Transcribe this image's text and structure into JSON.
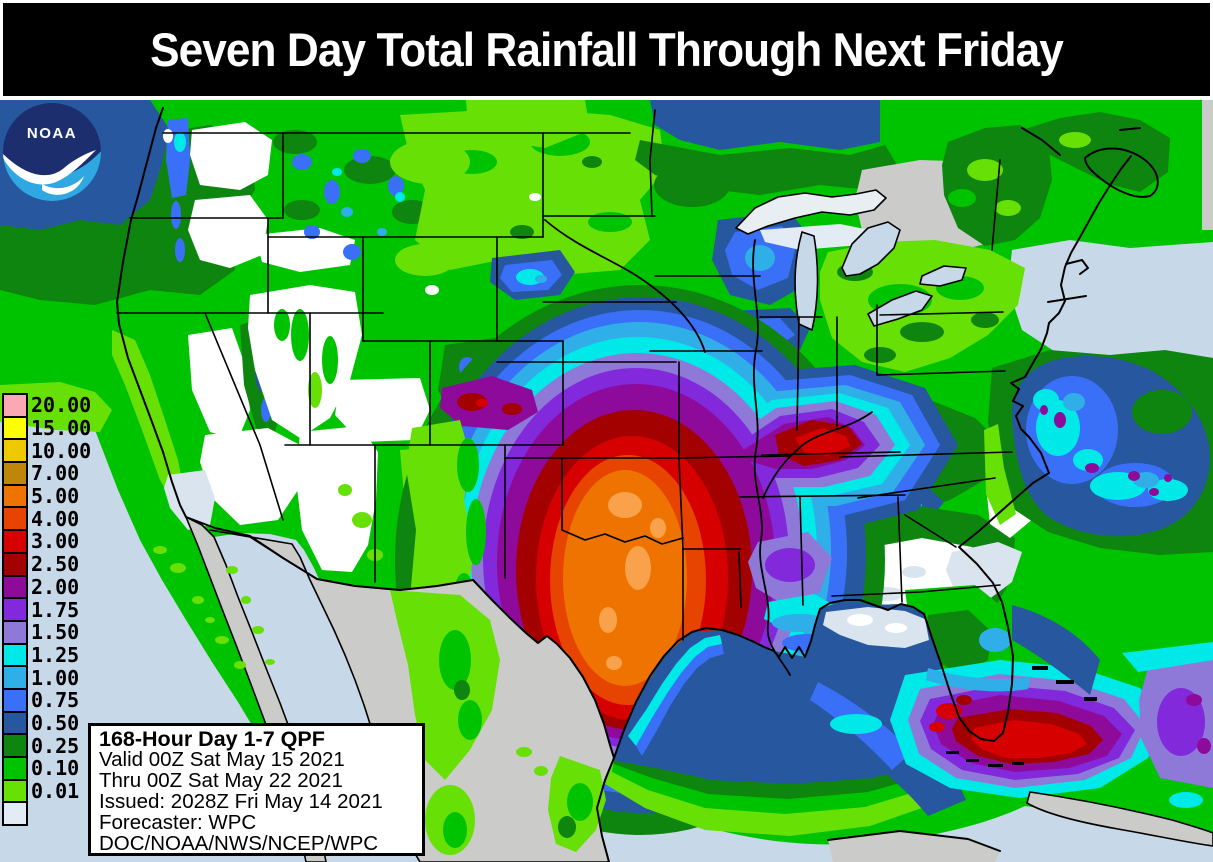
{
  "title": {
    "text": "Seven Day Total Rainfall Through Next Friday"
  },
  "map": {
    "colors": {
      "ocean": "#C7D8E8",
      "nodata": "#CBCBCA",
      "norain": "#FFFFFF",
      "trace": "#D9E4EE",
      "spot": "#F9A24B",
      "lake": "#E9EEF2",
      "noaa_navy": "#1C2E6E",
      "noaa_lightblue": "#2FA8E2"
    }
  },
  "legend": {
    "entries": [
      {
        "key": "q2000",
        "label": "20.00",
        "color": "#F9A8B4"
      },
      {
        "key": "q1500",
        "label": "15.00",
        "color": "#FEFE00"
      },
      {
        "key": "q1000",
        "label": "10.00",
        "color": "#EFC900"
      },
      {
        "key": "q700",
        "label": "7.00",
        "color": "#BF860B"
      },
      {
        "key": "q500",
        "label": "5.00",
        "color": "#EE7300"
      },
      {
        "key": "q400",
        "label": "4.00",
        "color": "#E64400"
      },
      {
        "key": "q300",
        "label": "3.00",
        "color": "#D60000"
      },
      {
        "key": "q250",
        "label": "2.50",
        "color": "#A30000"
      },
      {
        "key": "q200",
        "label": "2.00",
        "color": "#8E0A9B"
      },
      {
        "key": "q175",
        "label": "1.75",
        "color": "#8229DB"
      },
      {
        "key": "q150",
        "label": "1.50",
        "color": "#8E79D9"
      },
      {
        "key": "q125",
        "label": "1.25",
        "color": "#00E9E9"
      },
      {
        "key": "q100",
        "label": "1.00",
        "color": "#30AEE8"
      },
      {
        "key": "q075",
        "label": "0.75",
        "color": "#3A70F8"
      },
      {
        "key": "q050",
        "label": "0.50",
        "color": "#26579F"
      },
      {
        "key": "q025",
        "label": "0.25",
        "color": "#0E850E"
      },
      {
        "key": "q010",
        "label": "0.10",
        "color": "#00C300"
      },
      {
        "key": "q001",
        "label": "0.01",
        "color": "#67E005"
      }
    ],
    "below_min_color": "#E3ECF4"
  },
  "info_box": {
    "lines": [
      {
        "text": "168-Hour Day 1-7 QPF",
        "bold": true
      },
      {
        "text": "Valid 00Z Sat May 15 2021",
        "bold": false
      },
      {
        "text": "Thru 00Z Sat May 22 2021",
        "bold": false
      },
      {
        "text": "Issued: 2028Z Fri May 14 2021",
        "bold": false
      },
      {
        "text": "Forecaster: WPC",
        "bold": false
      },
      {
        "text": "DOC/NOAA/NWS/NCEP/WPC",
        "bold": false
      }
    ]
  },
  "noaa_logo": {
    "label": "NOAA"
  }
}
